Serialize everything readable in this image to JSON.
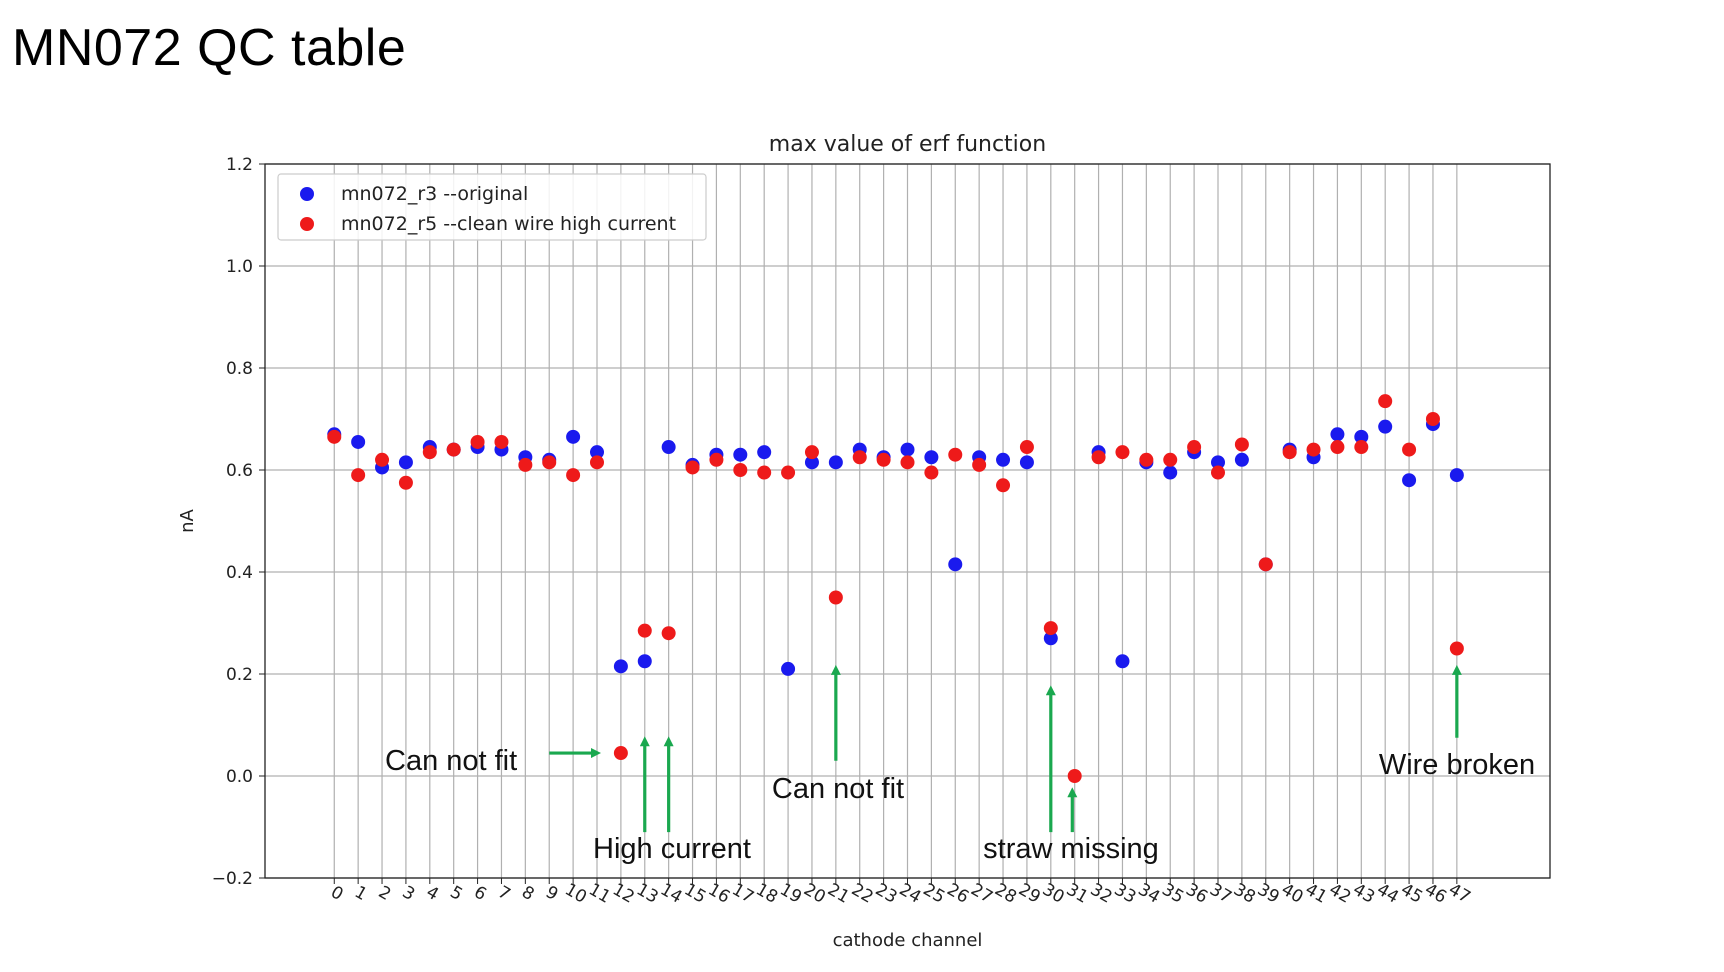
{
  "slide": {
    "title": "MN072 QC table"
  },
  "chart_data": {
    "type": "scatter",
    "title": "max value of erf function",
    "xlabel": "cathode channel",
    "ylabel": "nA",
    "ylim": [
      -0.2,
      1.2
    ],
    "yticks": [
      -0.2,
      0.0,
      0.2,
      0.4,
      0.6,
      0.8,
      1.0,
      1.2
    ],
    "ytick_labels": [
      "−0.2",
      "0.0",
      "0.2",
      "0.4",
      "0.6",
      "0.8",
      "1.0",
      "1.2"
    ],
    "x": [
      0,
      1,
      2,
      3,
      4,
      5,
      6,
      7,
      8,
      9,
      10,
      11,
      12,
      13,
      14,
      15,
      16,
      17,
      18,
      19,
      20,
      21,
      22,
      23,
      24,
      25,
      26,
      27,
      28,
      29,
      30,
      31,
      32,
      33,
      34,
      35,
      36,
      37,
      38,
      39,
      40,
      41,
      42,
      43,
      44,
      45,
      46,
      47
    ],
    "grid": true,
    "legend_position": "top-left",
    "series": [
      {
        "name": "mn072_r3 --original",
        "color": "#1a1aee",
        "points": [
          [
            0,
            0.67
          ],
          [
            1,
            0.655
          ],
          [
            2,
            0.605
          ],
          [
            3,
            0.615
          ],
          [
            4,
            0.645
          ],
          [
            5,
            0.64
          ],
          [
            6,
            0.645
          ],
          [
            7,
            0.64
          ],
          [
            8,
            0.625
          ],
          [
            9,
            0.62
          ],
          [
            10,
            0.665
          ],
          [
            11,
            0.635
          ],
          [
            12,
            0.215
          ],
          [
            13,
            0.225
          ],
          [
            14,
            0.645
          ],
          [
            15,
            0.61
          ],
          [
            16,
            0.63
          ],
          [
            17,
            0.63
          ],
          [
            18,
            0.635
          ],
          [
            19,
            0.21
          ],
          [
            20,
            0.615
          ],
          [
            21,
            0.615
          ],
          [
            22,
            0.64
          ],
          [
            23,
            0.625
          ],
          [
            24,
            0.64
          ],
          [
            25,
            0.625
          ],
          [
            26,
            0.415
          ],
          [
            27,
            0.625
          ],
          [
            28,
            0.62
          ],
          [
            29,
            0.615
          ],
          [
            30,
            0.27
          ],
          [
            32,
            0.635
          ],
          [
            33,
            0.225
          ],
          [
            34,
            0.615
          ],
          [
            35,
            0.595
          ],
          [
            36,
            0.635
          ],
          [
            37,
            0.615
          ],
          [
            38,
            0.62
          ],
          [
            39,
            0.415
          ],
          [
            40,
            0.64
          ],
          [
            41,
            0.625
          ],
          [
            42,
            0.67
          ],
          [
            43,
            0.665
          ],
          [
            44,
            0.685
          ],
          [
            45,
            0.58
          ],
          [
            46,
            0.69
          ],
          [
            47,
            0.59
          ]
        ]
      },
      {
        "name": "mn072_r5 --clean wire high current",
        "color": "#ee1a1a",
        "points": [
          [
            0,
            0.665
          ],
          [
            1,
            0.59
          ],
          [
            2,
            0.62
          ],
          [
            3,
            0.575
          ],
          [
            4,
            0.635
          ],
          [
            5,
            0.64
          ],
          [
            6,
            0.655
          ],
          [
            7,
            0.655
          ],
          [
            8,
            0.61
          ],
          [
            9,
            0.615
          ],
          [
            10,
            0.59
          ],
          [
            11,
            0.615
          ],
          [
            12,
            0.045
          ],
          [
            13,
            0.285
          ],
          [
            14,
            0.28
          ],
          [
            15,
            0.605
          ],
          [
            16,
            0.62
          ],
          [
            17,
            0.6
          ],
          [
            18,
            0.595
          ],
          [
            19,
            0.595
          ],
          [
            20,
            0.635
          ],
          [
            21,
            0.35
          ],
          [
            22,
            0.625
          ],
          [
            23,
            0.62
          ],
          [
            24,
            0.615
          ],
          [
            25,
            0.595
          ],
          [
            26,
            0.63
          ],
          [
            27,
            0.61
          ],
          [
            28,
            0.57
          ],
          [
            29,
            0.645
          ],
          [
            30,
            0.29
          ],
          [
            31,
            0.0
          ],
          [
            32,
            0.625
          ],
          [
            33,
            0.635
          ],
          [
            34,
            0.62
          ],
          [
            35,
            0.62
          ],
          [
            36,
            0.645
          ],
          [
            37,
            0.595
          ],
          [
            38,
            0.65
          ],
          [
            39,
            0.415
          ],
          [
            40,
            0.635
          ],
          [
            41,
            0.64
          ],
          [
            42,
            0.645
          ],
          [
            43,
            0.645
          ],
          [
            44,
            0.735
          ],
          [
            45,
            0.64
          ],
          [
            46,
            0.7
          ],
          [
            47,
            0.25
          ]
        ]
      }
    ],
    "annotations": [
      {
        "text": "Can not fit",
        "arrow": {
          "from": [
            9.0,
            0.045
          ],
          "to": [
            11.0,
            0.045
          ]
        }
      },
      {
        "text": "High current",
        "arrows": [
          {
            "from": [
              13.0,
              -0.11
            ],
            "to": [
              13.0,
              0.07
            ]
          },
          {
            "from": [
              14.0,
              -0.11
            ],
            "to": [
              14.0,
              0.07
            ]
          }
        ]
      },
      {
        "text": "Can not fit",
        "arrow": {
          "from": [
            21.0,
            0.03
          ],
          "to": [
            21.0,
            0.21
          ]
        }
      },
      {
        "text": "straw missing",
        "arrows": [
          {
            "from": [
              30.0,
              -0.11
            ],
            "to": [
              30.0,
              0.17
            ]
          },
          {
            "from": [
              30.9,
              -0.11
            ],
            "to": [
              30.9,
              -0.03
            ]
          }
        ]
      },
      {
        "text": "Wire broken",
        "arrow": {
          "from": [
            47.0,
            0.075
          ],
          "to": [
            47.0,
            0.21
          ]
        }
      }
    ]
  }
}
